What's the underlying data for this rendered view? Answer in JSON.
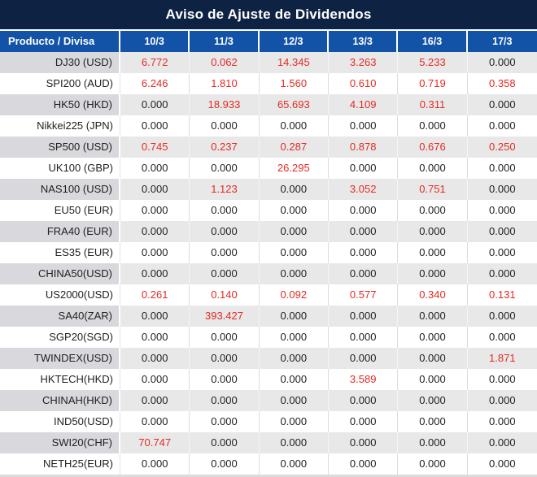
{
  "title": "Aviso de Ajuste de Dividendos",
  "colors": {
    "title_bg": "#0E2244",
    "header_bg": "#1253A8",
    "alt_row_value_bg": "#E8E8E8",
    "alt_row_label_bg": "#D9D9DD",
    "white_row_bg": "#FFFFFF",
    "red_value": "#E42B23",
    "black_value": "#1F1F1F"
  },
  "table": {
    "columns": [
      "Producto / Divisa",
      "10/3",
      "11/3",
      "12/3",
      "13/3",
      "16/3",
      "17/3"
    ],
    "rows": [
      {
        "label": "DJ30 (USD)",
        "values": [
          "6.772",
          "0.062",
          "14.345",
          "3.263",
          "5.233",
          "0.000"
        ],
        "red": [
          true,
          true,
          true,
          true,
          true,
          false
        ]
      },
      {
        "label": "SPI200 (AUD)",
        "values": [
          "6.246",
          "1.810",
          "1.560",
          "0.610",
          "0.719",
          "0.358"
        ],
        "red": [
          true,
          true,
          true,
          true,
          true,
          true
        ]
      },
      {
        "label": "HK50 (HKD)",
        "values": [
          "0.000",
          "18.933",
          "65.693",
          "4.109",
          "0.311",
          "0.000"
        ],
        "red": [
          false,
          true,
          true,
          true,
          true,
          false
        ]
      },
      {
        "label": "Nikkei225 (JPN)",
        "values": [
          "0.000",
          "0.000",
          "0.000",
          "0.000",
          "0.000",
          "0.000"
        ],
        "red": [
          false,
          false,
          false,
          false,
          false,
          false
        ]
      },
      {
        "label": "SP500 (USD)",
        "values": [
          "0.745",
          "0.237",
          "0.287",
          "0.878",
          "0.676",
          "0.250"
        ],
        "red": [
          true,
          true,
          true,
          true,
          true,
          true
        ]
      },
      {
        "label": "UK100 (GBP)",
        "values": [
          "0.000",
          "0.000",
          "26.295",
          "0.000",
          "0.000",
          "0.000"
        ],
        "red": [
          false,
          false,
          true,
          false,
          false,
          false
        ]
      },
      {
        "label": "NAS100 (USD)",
        "values": [
          "0.000",
          "1.123",
          "0.000",
          "3.052",
          "0.751",
          "0.000"
        ],
        "red": [
          false,
          true,
          false,
          true,
          true,
          false
        ]
      },
      {
        "label": "EU50 (EUR)",
        "values": [
          "0.000",
          "0.000",
          "0.000",
          "0.000",
          "0.000",
          "0.000"
        ],
        "red": [
          false,
          false,
          false,
          false,
          false,
          false
        ]
      },
      {
        "label": "FRA40 (EUR)",
        "values": [
          "0.000",
          "0.000",
          "0.000",
          "0.000",
          "0.000",
          "0.000"
        ],
        "red": [
          false,
          false,
          false,
          false,
          false,
          false
        ]
      },
      {
        "label": "ES35 (EUR)",
        "values": [
          "0.000",
          "0.000",
          "0.000",
          "0.000",
          "0.000",
          "0.000"
        ],
        "red": [
          false,
          false,
          false,
          false,
          false,
          false
        ]
      },
      {
        "label": "CHINA50(USD)",
        "values": [
          "0.000",
          "0.000",
          "0.000",
          "0.000",
          "0.000",
          "0.000"
        ],
        "red": [
          false,
          false,
          false,
          false,
          false,
          false
        ]
      },
      {
        "label": "US2000(USD)",
        "values": [
          "0.261",
          "0.140",
          "0.092",
          "0.577",
          "0.340",
          "0.131"
        ],
        "red": [
          true,
          true,
          true,
          true,
          true,
          true
        ]
      },
      {
        "label": "SA40(ZAR)",
        "values": [
          "0.000",
          "393.427",
          "0.000",
          "0.000",
          "0.000",
          "0.000"
        ],
        "red": [
          false,
          true,
          false,
          false,
          false,
          false
        ]
      },
      {
        "label": "SGP20(SGD)",
        "values": [
          "0.000",
          "0.000",
          "0.000",
          "0.000",
          "0.000",
          "0.000"
        ],
        "red": [
          false,
          false,
          false,
          false,
          false,
          false
        ]
      },
      {
        "label": "TWINDEX(USD)",
        "values": [
          "0.000",
          "0.000",
          "0.000",
          "0.000",
          "0.000",
          "1.871"
        ],
        "red": [
          false,
          false,
          false,
          false,
          false,
          true
        ]
      },
      {
        "label": "HKTECH(HKD)",
        "values": [
          "0.000",
          "0.000",
          "0.000",
          "3.589",
          "0.000",
          "0.000"
        ],
        "red": [
          false,
          false,
          false,
          true,
          false,
          false
        ]
      },
      {
        "label": "CHINAH(HKD)",
        "values": [
          "0.000",
          "0.000",
          "0.000",
          "0.000",
          "0.000",
          "0.000"
        ],
        "red": [
          false,
          false,
          false,
          false,
          false,
          false
        ]
      },
      {
        "label": "IND50(USD)",
        "values": [
          "0.000",
          "0.000",
          "0.000",
          "0.000",
          "0.000",
          "0.000"
        ],
        "red": [
          false,
          false,
          false,
          false,
          false,
          false
        ]
      },
      {
        "label": "SWI20(CHF)",
        "values": [
          "70.747",
          "0.000",
          "0.000",
          "0.000",
          "0.000",
          "0.000"
        ],
        "red": [
          true,
          false,
          false,
          false,
          false,
          false
        ]
      },
      {
        "label": "NETH25(EUR)",
        "values": [
          "0.000",
          "0.000",
          "0.000",
          "0.000",
          "0.000",
          "0.000"
        ],
        "red": [
          false,
          false,
          false,
          false,
          false,
          false
        ]
      }
    ]
  }
}
